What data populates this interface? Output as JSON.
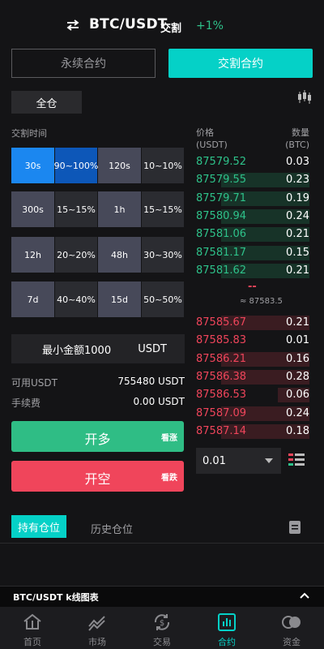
{
  "header": {
    "pair": "BTC/USDT",
    "type_tag": "交割",
    "change": "+1%"
  },
  "modes": {
    "perpetual": "永续合约",
    "delivery": "交割合约"
  },
  "margin_mode": "全仓",
  "delivery_time_label": "交割时间",
  "options": [
    {
      "time": "30s",
      "pct": "90~100%",
      "selected": true
    },
    {
      "time": "120s",
      "pct": "10~10%",
      "selected": false
    },
    {
      "time": "300s",
      "pct": "15~15%",
      "selected": false
    },
    {
      "time": "1h",
      "pct": "15~15%",
      "selected": false
    },
    {
      "time": "12h",
      "pct": "20~20%",
      "selected": false
    },
    {
      "time": "48h",
      "pct": "30~30%",
      "selected": false
    },
    {
      "time": "7d",
      "pct": "40~40%",
      "selected": false
    },
    {
      "time": "15d",
      "pct": "50~50%",
      "selected": false
    }
  ],
  "min_amount": {
    "label": "最小金额1000",
    "unit": "USDT"
  },
  "available": {
    "label": "可用USDT",
    "value": "755480 USDT"
  },
  "fee": {
    "label": "手续费",
    "value": "0.00 USDT"
  },
  "buttons": {
    "long": "开多",
    "long_hint": "看涨",
    "short": "开空",
    "short_hint": "看跌"
  },
  "orderbook": {
    "price_header": "价格",
    "price_unit": "(USDT)",
    "qty_header": "数量",
    "qty_unit": "(BTC)",
    "bids": [
      {
        "price": "87579.52",
        "qty": "0.03",
        "depth": 0.0
      },
      {
        "price": "87579.55",
        "qty": "0.23",
        "depth": 0.78
      },
      {
        "price": "87579.71",
        "qty": "0.19",
        "depth": 0.78
      },
      {
        "price": "87580.94",
        "qty": "0.24",
        "depth": 0.78
      },
      {
        "price": "87581.06",
        "qty": "0.21",
        "depth": 0.78
      },
      {
        "price": "87581.17",
        "qty": "0.15",
        "depth": 0.78
      },
      {
        "price": "87581.62",
        "qty": "0.21",
        "depth": 0.78
      }
    ],
    "last_price": "--",
    "index_price": "≈ 87583.5",
    "asks": [
      {
        "price": "87585.67",
        "qty": "0.21",
        "depth": 0.78
      },
      {
        "price": "87585.83",
        "qty": "0.01",
        "depth": 0.0
      },
      {
        "price": "87586.21",
        "qty": "0.16",
        "depth": 0.78
      },
      {
        "price": "87586.38",
        "qty": "0.28",
        "depth": 0.78
      },
      {
        "price": "87586.53",
        "qty": "0.06",
        "depth": 0.28
      },
      {
        "price": "87587.09",
        "qty": "0.24",
        "depth": 0.78
      },
      {
        "price": "87587.14",
        "qty": "0.18",
        "depth": 0.78
      }
    ],
    "depth_value": "0.01"
  },
  "tabs": {
    "positions": "持有仓位",
    "history": "历史仓位"
  },
  "kline_bar": "BTC/USDT k线图表",
  "nav": [
    {
      "label": "首页",
      "icon": "home-icon",
      "active": false
    },
    {
      "label": "市场",
      "icon": "chart-line-icon",
      "active": false
    },
    {
      "label": "交易",
      "icon": "exchange-icon",
      "active": false
    },
    {
      "label": "合约",
      "icon": "contract-icon",
      "active": true
    },
    {
      "label": "资金",
      "icon": "wallet-icon",
      "active": false
    }
  ],
  "colors": {
    "accent": "#05d1c7",
    "up": "#2ec28a",
    "down": "#f0455b",
    "selected": "#1b87f0"
  }
}
